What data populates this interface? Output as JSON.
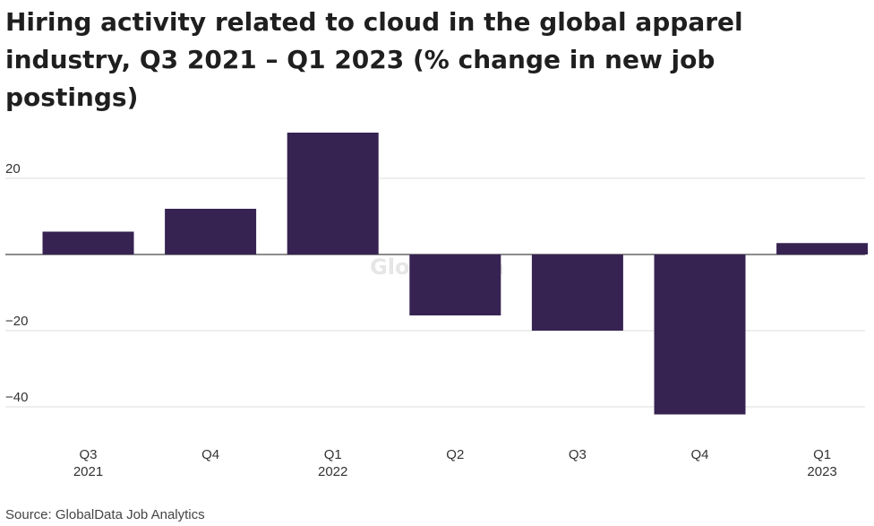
{
  "chart_data": {
    "type": "bar",
    "title": "Hiring activity related to cloud in the global apparel industry, Q3 2021 – Q1 2023 (% change in new job postings)",
    "categories": [
      [
        "Q3",
        "2021"
      ],
      [
        "Q4",
        ""
      ],
      [
        "Q1",
        "2022"
      ],
      [
        "Q2",
        ""
      ],
      [
        "Q3",
        ""
      ],
      [
        "Q4",
        ""
      ],
      [
        "Q1",
        "2023"
      ]
    ],
    "values": [
      6,
      12,
      32,
      -16,
      -20,
      -42,
      3
    ],
    "yticks": [
      20,
      -20,
      -40
    ],
    "ytick_labels": [
      "20",
      "−20",
      "−40"
    ],
    "ylim": [
      -48,
      36
    ],
    "grid": true,
    "bar_color": "#372352",
    "xlabel": "",
    "ylabel": ""
  },
  "watermark": "GlobalData",
  "source": "Source: GlobalData Job Analytics"
}
